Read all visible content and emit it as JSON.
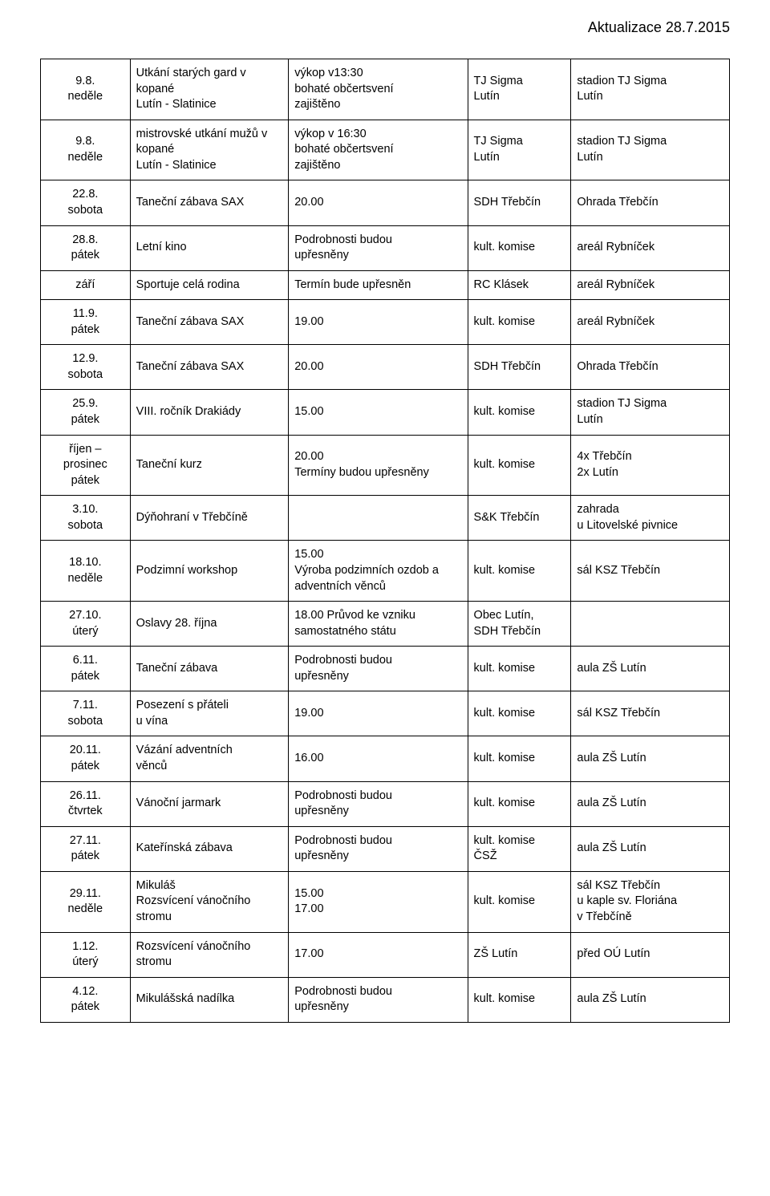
{
  "header": {
    "update_text": "Aktualizace 28.7.2015"
  },
  "table": {
    "rows": [
      {
        "date": "9.8.\nneděle",
        "event": "Utkání starých gard v kopané\nLutín - Slatinice",
        "detail": "výkop v13:30\nbohaté občertsvení\nzajištěno",
        "org": "TJ Sigma\nLutín",
        "place": "stadion TJ Sigma\nLutín"
      },
      {
        "date": "9.8.\nneděle",
        "event": "mistrovské utkání mužů v kopané\nLutín - Slatinice",
        "detail": "výkop v 16:30\nbohaté občertsvení\nzajištěno",
        "org": "TJ Sigma\nLutín",
        "place": "stadion TJ Sigma\nLutín"
      },
      {
        "date": "22.8.\nsobota",
        "event": "Taneční zábava SAX",
        "detail": "20.00",
        "org": "SDH Třebčín",
        "place": "Ohrada Třebčín"
      },
      {
        "date": "28.8.\npátek",
        "event": "Letní kino",
        "detail": "Podrobnosti budou\nupřesněny",
        "org": "kult. komise",
        "place": "areál Rybníček"
      },
      {
        "date": "září",
        "event": "Sportuje celá rodina",
        "detail": "Termín bude upřesněn",
        "org": "RC Klásek",
        "place": "areál Rybníček"
      },
      {
        "date": "11.9.\npátek",
        "event": "Taneční zábava SAX",
        "detail": "19.00",
        "org": "kult. komise",
        "place": "areál Rybníček"
      },
      {
        "date": "12.9.\nsobota",
        "event": "Taneční zábava SAX",
        "detail": "20.00",
        "org": "SDH Třebčín",
        "place": "Ohrada Třebčín"
      },
      {
        "date": "25.9.\npátek",
        "event": "VIII. ročník Drakiády",
        "detail": "15.00",
        "org": "kult. komise",
        "place": "stadion TJ Sigma\nLutín"
      },
      {
        "date": "říjen – prosinec\npátek",
        "event": "Taneční kurz",
        "detail": "20.00\nTermíny budou upřesněny",
        "org": "kult. komise",
        "place": "4x Třebčín\n2x Lutín"
      },
      {
        "date": "3.10.\nsobota",
        "event": "Dýňohraní v Třebčíně",
        "detail": "",
        "org": "S&K Třebčín",
        "place": "zahrada\nu Litovelské pivnice"
      },
      {
        "date": "18.10.\nneděle",
        "event": "Podzimní workshop",
        "detail": "15.00\nVýroba podzimních ozdob a adventních věnců",
        "org": "kult. komise",
        "place": "sál KSZ Třebčín"
      },
      {
        "date": "27.10.\núterý",
        "event": "Oslavy 28. října",
        "detail": "18.00 Průvod ke vzniku samostatného státu",
        "org": "Obec Lutín,\nSDH Třebčín",
        "place": ""
      },
      {
        "date": "6.11.\npátek",
        "event": "Taneční zábava",
        "detail": "Podrobnosti budou\nupřesněny",
        "org": "kult. komise",
        "place": "aula ZŠ Lutín"
      },
      {
        "date": "7.11.\nsobota",
        "event": "Posezení s přáteli\nu vína",
        "detail": "19.00",
        "org": "kult. komise",
        "place": "sál KSZ Třebčín"
      },
      {
        "date": "20.11.\npátek",
        "event": "Vázání adventních\nvěnců",
        "detail": "16.00",
        "org": "kult. komise",
        "place": "aula ZŠ Lutín"
      },
      {
        "date": "26.11.\nčtvrtek",
        "event": "Vánoční jarmark",
        "detail": "Podrobnosti budou\nupřesněny",
        "org": "kult. komise",
        "place": "aula ZŠ Lutín"
      },
      {
        "date": "27.11.\npátek",
        "event": "Kateřínská zábava",
        "detail": "Podrobnosti budou\nupřesněny",
        "org": "kult. komise\nČSŽ",
        "place": "aula ZŠ Lutín"
      },
      {
        "date": "29.11.\nneděle",
        "event": "Mikuláš\nRozsvícení vánočního stromu",
        "detail": "15.00\n17.00",
        "org": "kult. komise",
        "place": "sál KSZ Třebčín\nu kaple sv. Floriána\nv Třebčíně"
      },
      {
        "date": "1.12.\núterý",
        "event": "Rozsvícení vánočního stromu",
        "detail": "17.00",
        "org": "ZŠ Lutín",
        "place": "před OÚ Lutín"
      },
      {
        "date": "4.12.\npátek",
        "event": "Mikulášská nadílka",
        "detail": "Podrobnosti budou\nupřesněny",
        "org": "kult. komise",
        "place": "aula ZŠ Lutín"
      }
    ]
  }
}
